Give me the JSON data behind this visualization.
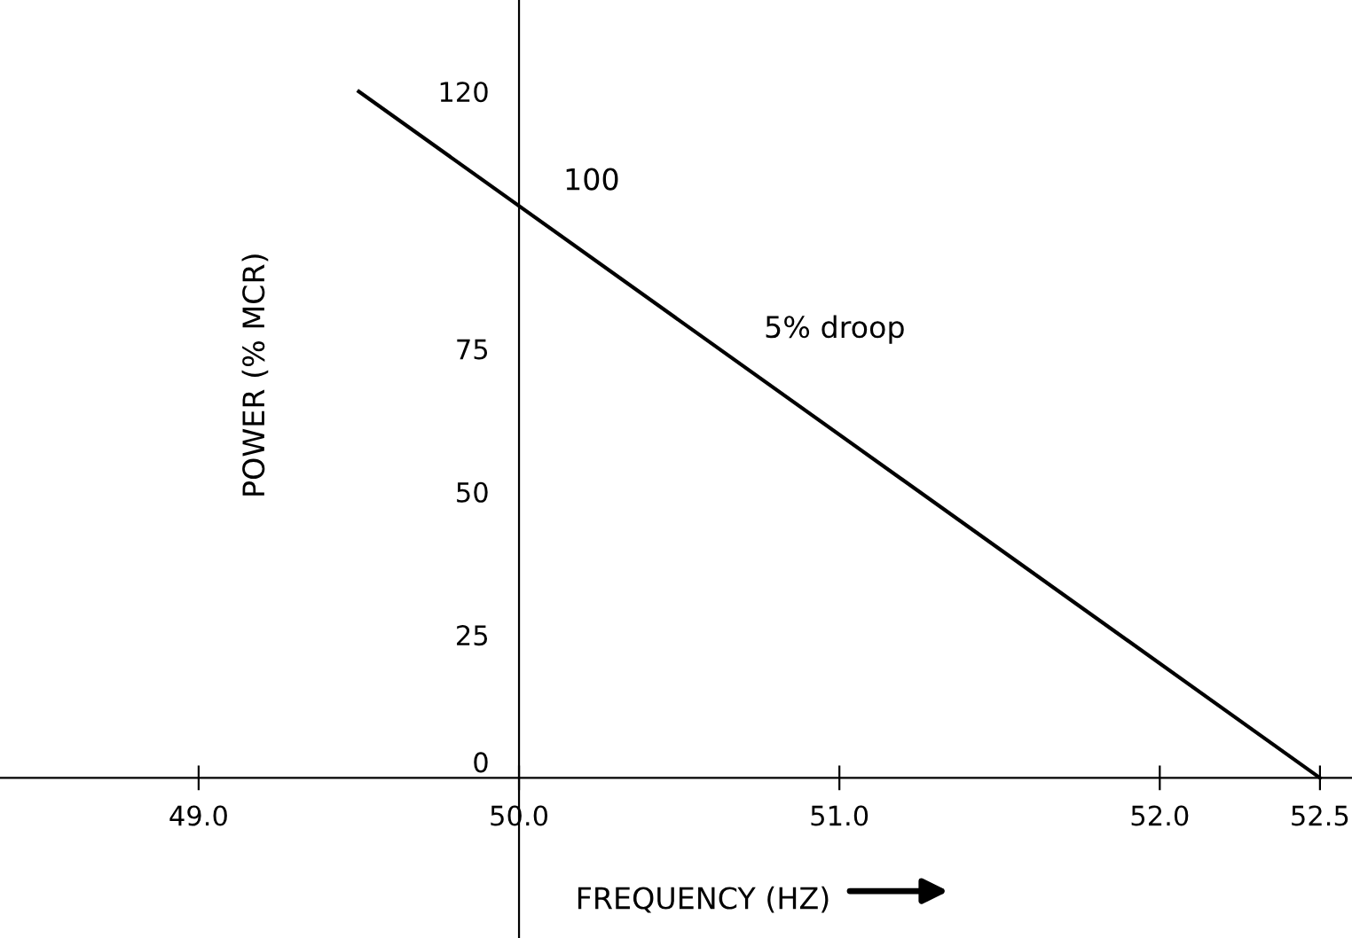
{
  "chart_data": {
    "type": "line",
    "xlabel": "FREQUENCY (HZ)",
    "ylabel": "POWER (% MCR)",
    "x": [
      49.5,
      52.5
    ],
    "series": [
      {
        "color": "#000000",
        "values": [
          120,
          0
        ]
      }
    ],
    "xlim": [
      48.38,
      52.6
    ],
    "ylim": [
      -28,
      136
    ],
    "xticks": [
      {
        "value": 49.0,
        "label": "49.0"
      },
      {
        "value": 50.0,
        "label": "50.0"
      },
      {
        "value": 51.0,
        "label": "51.0"
      },
      {
        "value": 52.0,
        "label": "52.0"
      },
      52.5
    ],
    "yticks": [
      0,
      25,
      50,
      75,
      120
    ],
    "annotations": [
      {
        "text": "100",
        "x": 50.0,
        "y": 100
      },
      "5% droop"
    ],
    "grid": false,
    "legend": false,
    "marker": "none",
    "line_style": "solid"
  }
}
